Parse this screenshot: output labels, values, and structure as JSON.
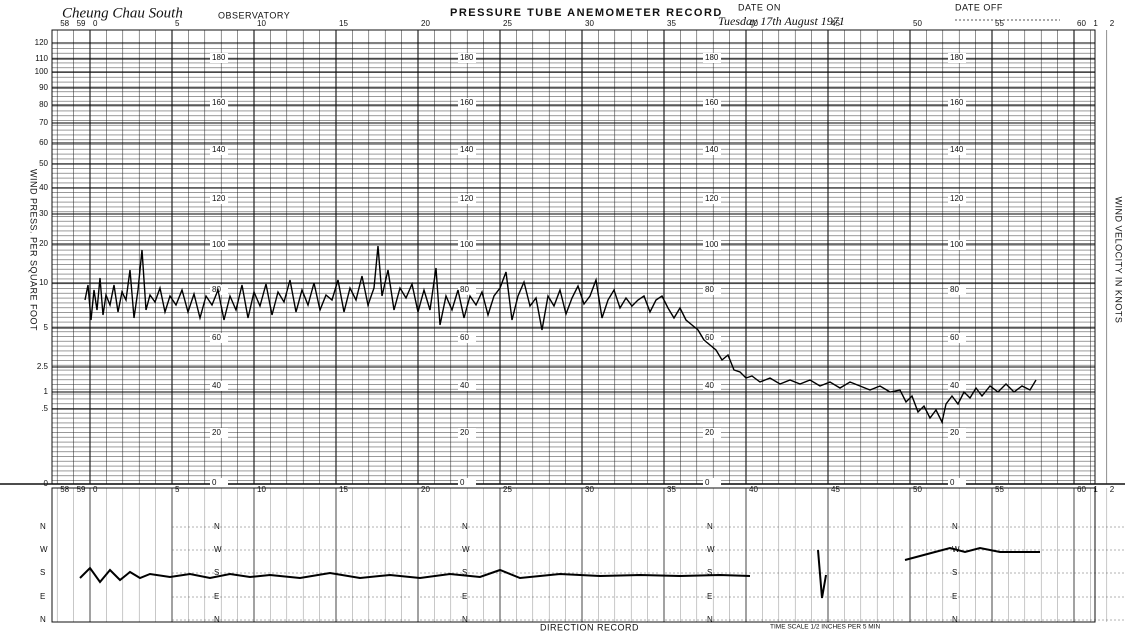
{
  "header": {
    "station": "Cheung Chau South",
    "observatory": "OBSERVATORY",
    "title": "PRESSURE TUBE ANEMOMETER RECORD",
    "date_on": "DATE ON",
    "date": "Tuesday 17th August 1971",
    "date_off": "DATE OFF"
  },
  "time_scale": [
    "58",
    "59",
    "0",
    "5",
    "10",
    "15",
    "20",
    "25",
    "30",
    "35",
    "40",
    "45",
    "50",
    "55",
    "60",
    "1",
    "2"
  ],
  "pressure_scale": {
    "label": "WIND PRESS. PER SQUARE FOOT",
    "ticks": [
      "120",
      "110",
      "100",
      "90",
      "80",
      "70",
      "60",
      "50",
      "40",
      "30",
      "20",
      "10",
      "5",
      "2.5",
      "1",
      ".5",
      "0"
    ]
  },
  "velocity_scale": {
    "label": "WIND VELOCITY IN KNOTS",
    "ticks": [
      "180",
      "160",
      "140",
      "120",
      "100",
      "80",
      "60",
      "40",
      "20",
      "0"
    ]
  },
  "direction": {
    "label": "DIRECTION RECORD",
    "points": [
      "N",
      "W",
      "S",
      "E",
      "N"
    ],
    "time_note": "TIME SCALE 1/2 INCHES PER 5 MIN"
  }
}
